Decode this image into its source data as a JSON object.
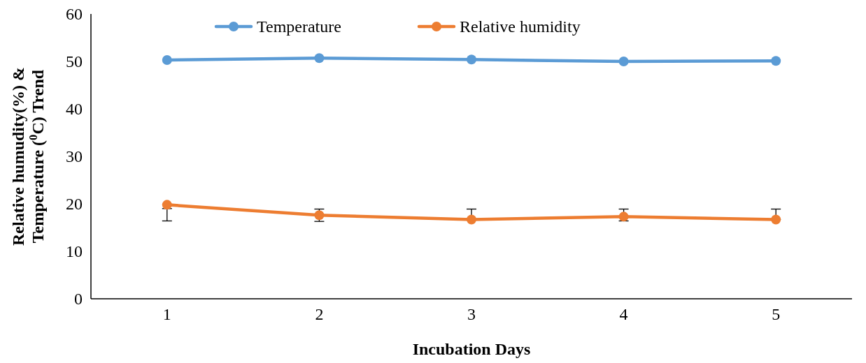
{
  "chart_data": {
    "type": "line",
    "xlabel": "Incubation Days",
    "ylabel": "Relative humudity(%) &\nTemperature ($^{0}$C) Trend",
    "categories": [
      "1",
      "2",
      "3",
      "4",
      "5"
    ],
    "ylim": [
      0,
      60
    ],
    "yticks": [
      0,
      10,
      20,
      30,
      40,
      50,
      60
    ],
    "legend": "top",
    "marker": "circle",
    "grid": false,
    "series": [
      {
        "name": "Temperature",
        "color": "#5b9bd5",
        "values": [
          50.3,
          50.7,
          50.4,
          50.0,
          50.1
        ]
      },
      {
        "name": "Relative humidity",
        "color": "#ed7d31",
        "values": [
          19.8,
          17.6,
          16.7,
          17.3,
          16.7
        ],
        "errors": [
          [
            16.4,
            19.0
          ],
          [
            16.3,
            18.9
          ],
          [
            16.7,
            18.9
          ],
          [
            16.4,
            18.9
          ],
          [
            16.7,
            18.9
          ]
        ]
      }
    ]
  }
}
